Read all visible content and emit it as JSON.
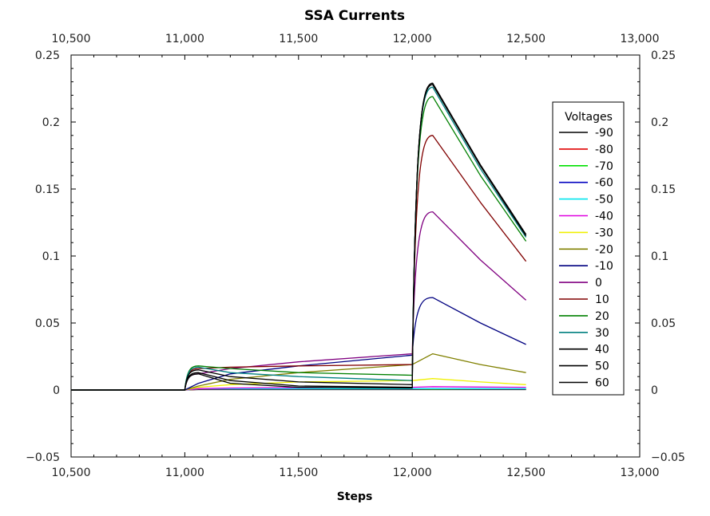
{
  "chart_data": {
    "type": "line",
    "title": "SSA Currents",
    "xlabel": "Steps",
    "ylabel": "",
    "xlim": [
      10500,
      13000
    ],
    "ylim": [
      -0.05,
      0.25
    ],
    "x_ticks": [
      "10,500",
      "11,000",
      "11,500",
      "12,000",
      "12,500",
      "13,000"
    ],
    "y_ticks": [
      "−0.05",
      "0",
      "0.05",
      "0.1",
      "0.15",
      "0.2",
      "0.25"
    ],
    "grid": false,
    "legend": {
      "title": "Voltages",
      "placement": "right"
    },
    "x": [
      10500,
      11000,
      11060,
      11200,
      11500,
      12000,
      12090,
      12300,
      12500
    ],
    "series": [
      {
        "name": "-90",
        "color": "#000000",
        "values": [
          0,
          0,
          0.0003,
          0.0003,
          0.0003,
          0.0003,
          0.0003,
          0.0003,
          0.0003
        ]
      },
      {
        "name": "-80",
        "color": "#e00000",
        "values": [
          0,
          0,
          0.0005,
          0.0005,
          0.0005,
          0.0005,
          0.0005,
          0.0005,
          0.0005
        ]
      },
      {
        "name": "-70",
        "color": "#00e000",
        "values": [
          0,
          0,
          0.0006,
          0.0006,
          0.0006,
          0.0006,
          0.0006,
          0.0006,
          0.0006
        ]
      },
      {
        "name": "-60",
        "color": "#0000c0",
        "values": [
          0,
          0,
          0.0008,
          0.0008,
          0.0008,
          0.0008,
          0.0009,
          0.0008,
          0.0008
        ]
      },
      {
        "name": "-50",
        "color": "#00e5ee",
        "values": [
          0,
          0,
          0.001,
          0.001,
          0.001,
          0.001,
          0.001,
          0.001,
          0.001
        ]
      },
      {
        "name": "-40",
        "color": "#e000e0",
        "values": [
          0,
          0,
          0.001,
          0.0015,
          0.0018,
          0.002,
          0.0025,
          0.0022,
          0.002
        ]
      },
      {
        "name": "-30",
        "color": "#f0f000",
        "values": [
          0,
          0,
          0.002,
          0.004,
          0.006,
          0.007,
          0.0085,
          0.006,
          0.004
        ]
      },
      {
        "name": "-20",
        "color": "#808000",
        "values": [
          0,
          0,
          0.003,
          0.008,
          0.013,
          0.019,
          0.027,
          0.019,
          0.013
        ]
      },
      {
        "name": "-10",
        "color": "#000080",
        "values": [
          0,
          0,
          0.005,
          0.012,
          0.018,
          0.026,
          0.069,
          0.05,
          0.034
        ]
      },
      {
        "name": "0",
        "color": "#800080",
        "values": [
          0,
          0,
          0.012,
          0.016,
          0.021,
          0.027,
          0.133,
          0.097,
          0.067
        ]
      },
      {
        "name": "10",
        "color": "#800000",
        "values": [
          0,
          0,
          0.016,
          0.017,
          0.018,
          0.019,
          0.19,
          0.14,
          0.096
        ]
      },
      {
        "name": "20",
        "color": "#008000",
        "values": [
          0,
          0,
          0.018,
          0.016,
          0.013,
          0.011,
          0.219,
          0.16,
          0.111
        ]
      },
      {
        "name": "30",
        "color": "#008080",
        "values": [
          0,
          0,
          0.017,
          0.013,
          0.01,
          0.007,
          0.226,
          0.165,
          0.114
        ]
      },
      {
        "name": "40",
        "color": "#000000",
        "values": [
          0,
          0,
          0.015,
          0.01,
          0.006,
          0.004,
          0.228,
          0.167,
          0.115
        ]
      },
      {
        "name": "50",
        "color": "#000000",
        "values": [
          0,
          0,
          0.013,
          0.007,
          0.003,
          0.002,
          0.228,
          0.168,
          0.116
        ]
      },
      {
        "name": "60",
        "color": "#000000",
        "values": [
          0,
          0,
          0.012,
          0.005,
          0.002,
          0.0015,
          0.229,
          0.168,
          0.116
        ]
      }
    ]
  }
}
